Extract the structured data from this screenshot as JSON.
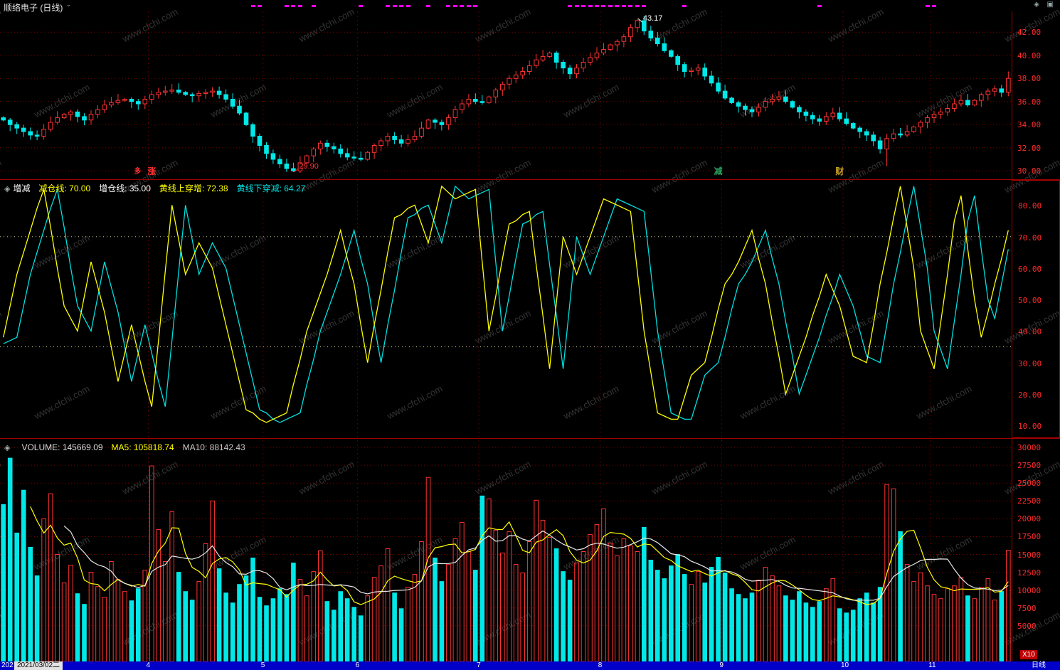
{
  "window": {
    "title": "顺络电子 (日线)",
    "caret": "ˇ",
    "icons": [
      {
        "name": "diamond-icon",
        "glyph": "◈"
      },
      {
        "name": "panes-icon",
        "glyph": "▣"
      }
    ]
  },
  "watermark": "www.cfchi.com",
  "colors": {
    "up": "#ff3232",
    "down": "#00e8e8",
    "grid": "#7a0000",
    "month_line": "#5a0000",
    "axis_text": "#ff2a2a",
    "ref_line": "#c8c890",
    "magenta": "#ff00ff",
    "bottom_bar": "#0000c8"
  },
  "panels": {
    "indicator": {
      "bullet": "◈",
      "name": "增减",
      "params": [
        {
          "text": "减仓线: 70.00",
          "color": "#ffff00"
        },
        {
          "text": "增仓线: 35.00",
          "color": "#ffffff"
        },
        {
          "text": "黄线上穿增: 72.38",
          "color": "#ffff00"
        },
        {
          "text": "黄线下穿减: 64.27",
          "color": "#00e0e0"
        }
      ]
    },
    "volume": {
      "bullet": "◈",
      "params": [
        {
          "text": "VOLUME: 145669.09",
          "color": "#dcdcdc"
        },
        {
          "text": "MA5: 105818.74",
          "color": "#ffff00"
        },
        {
          "text": "MA10: 88142.43",
          "color": "#c8c8c8"
        }
      ],
      "unit_label": "X10"
    }
  },
  "x_axis": {
    "clipped_text": "202",
    "date_label": "2021/03/02二",
    "period_label": "日线",
    "month_days": [
      22,
      39,
      53,
      71,
      89,
      107,
      125,
      138
    ],
    "month_labels": [
      "4",
      "5",
      "6",
      "7",
      "8",
      "9",
      "10",
      "11"
    ]
  },
  "chart_data": [
    {
      "type": "candlestick",
      "name": "顺络电子",
      "period": "日线",
      "ylim": [
        29.4,
        43.8
      ],
      "open_first": 34.6,
      "ticks": {
        "values": [
          42,
          40,
          38,
          36,
          34,
          32,
          30
        ],
        "labels": [
          "42.00",
          "40.00",
          "38.00",
          "36.00",
          "34.00",
          "32.00",
          "30.00"
        ]
      },
      "close": [
        34.4,
        34.0,
        33.7,
        33.4,
        33.1,
        33.0,
        33.6,
        34.2,
        34.6,
        34.9,
        35.1,
        34.7,
        34.4,
        34.9,
        35.3,
        35.7,
        35.9,
        36.1,
        36.2,
        36.0,
        35.8,
        36.2,
        36.6,
        36.8,
        36.9,
        37.0,
        36.8,
        36.6,
        36.5,
        36.7,
        36.8,
        36.9,
        36.6,
        36.2,
        35.6,
        35.0,
        34.0,
        33.0,
        32.2,
        31.5,
        31.0,
        30.6,
        30.2,
        30.0,
        30.7,
        31.3,
        31.9,
        32.4,
        32.1,
        31.9,
        31.5,
        31.2,
        31.1,
        31.0,
        31.6,
        32.2,
        32.6,
        33.0,
        32.7,
        32.4,
        32.7,
        33.0,
        33.7,
        34.4,
        34.2,
        34.0,
        34.6,
        35.3,
        35.8,
        36.2,
        36.0,
        35.9,
        36.4,
        37.0,
        37.5,
        38.0,
        38.3,
        38.6,
        39.1,
        39.6,
        39.9,
        40.2,
        39.4,
        38.9,
        38.4,
        38.9,
        39.4,
        39.8,
        40.2,
        40.5,
        40.9,
        41.2,
        41.6,
        42.4,
        43.0,
        42.1,
        41.5,
        41.0,
        40.4,
        39.9,
        39.2,
        38.6,
        38.7,
        38.9,
        38.2,
        37.6,
        36.9,
        36.3,
        35.9,
        35.6,
        35.3,
        35.1,
        35.5,
        36.0,
        36.2,
        36.4,
        36.0,
        35.5,
        35.1,
        34.8,
        34.5,
        34.3,
        34.7,
        35.0,
        34.5,
        34.1,
        33.7,
        33.4,
        33.1,
        32.6,
        31.9,
        32.8,
        33.2,
        33.1,
        33.4,
        33.8,
        34.2,
        34.6,
        34.9,
        35.1,
        35.4,
        35.8,
        36.1,
        35.7,
        36.1,
        36.6,
        36.9,
        37.1,
        36.8,
        38.0
      ],
      "wick_overrides": {
        "43": {
          "low": 29.9
        },
        "94": {
          "high": 43.17
        },
        "131": {
          "low": 30.4
        },
        "149": {
          "high": 38.6
        }
      },
      "annotations": [
        {
          "day": 94,
          "price": 43.17,
          "text": "43.17",
          "color": "#ffffff",
          "dir": "up"
        },
        {
          "day": 43,
          "price": 29.9,
          "text": "29.90",
          "color": "#ff3232",
          "dir": "down"
        }
      ],
      "markers": [
        {
          "day": 20,
          "text": "多",
          "color": "#ff3232",
          "size": 10
        },
        {
          "day": 22,
          "text": "涨",
          "color": "#ff3232",
          "size": 12
        },
        {
          "day": 106,
          "text": "减",
          "color": "#2aa45f",
          "size": 12
        },
        {
          "day": 124,
          "text": "财",
          "color": "#c9a227",
          "size": 12
        }
      ],
      "signal_days": [
        37,
        38,
        42,
        43,
        44,
        46,
        53,
        57,
        58,
        59,
        60,
        63,
        66,
        67,
        68,
        69,
        70,
        84,
        85,
        86,
        87,
        88,
        89,
        90,
        91,
        92,
        93,
        94,
        95,
        101,
        121,
        137,
        138
      ]
    },
    {
      "type": "line",
      "name": "增减",
      "ylim": [
        6,
        88
      ],
      "ticks": {
        "values": [
          80,
          70,
          60,
          50,
          40,
          30,
          20,
          10
        ],
        "labels": [
          "80.00",
          "70.00",
          "60.00",
          "50.00",
          "40.00",
          "30.00",
          "20.00",
          "10.00"
        ]
      },
      "reference_lines": [
        {
          "name": "减仓线",
          "value": 70
        },
        {
          "name": "增仓线",
          "value": 35
        }
      ],
      "crossover_values": {
        "黄线上穿增": 72.38,
        "黄线下穿减": 64.27
      },
      "series": [
        {
          "name": "青线",
          "color": "#00e0e0",
          "values": [
            36,
            37,
            38,
            48,
            58,
            65,
            72,
            79,
            85,
            73,
            60,
            48,
            44,
            40,
            51,
            62,
            54,
            46,
            35,
            24,
            33,
            42,
            33,
            24,
            16,
            37,
            59,
            80,
            69,
            58,
            63,
            68,
            64,
            60,
            51,
            42,
            33,
            24,
            15,
            14,
            12,
            11,
            12,
            13,
            14,
            23,
            31,
            40,
            46,
            52,
            58,
            65,
            72,
            63,
            55,
            42,
            30,
            42,
            53,
            65,
            76,
            77,
            79,
            80,
            74,
            68,
            77,
            86,
            84,
            82,
            83,
            84,
            85,
            62,
            40,
            51,
            63,
            74,
            75,
            77,
            78,
            61,
            45,
            28,
            49,
            70,
            64,
            58,
            64,
            70,
            76,
            82,
            81,
            80,
            79,
            78,
            59,
            40,
            27,
            14,
            13,
            12,
            12,
            19,
            26,
            28,
            30,
            38,
            47,
            55,
            58,
            62,
            67,
            72,
            63,
            55,
            43,
            32,
            20,
            26,
            32,
            38,
            45,
            51,
            58,
            53,
            48,
            40,
            32,
            31,
            30,
            42,
            55,
            65,
            76,
            86,
            73,
            60,
            40,
            34,
            28,
            43,
            58,
            75,
            83,
            66,
            50,
            44,
            55,
            66
          ]
        },
        {
          "name": "黄线",
          "color": "#ffff00",
          "values": [
            38,
            48,
            58,
            65,
            72,
            79,
            85,
            73,
            60,
            48,
            44,
            40,
            51,
            62,
            54,
            46,
            35,
            24,
            33,
            42,
            33,
            24,
            16,
            37,
            59,
            80,
            69,
            58,
            63,
            68,
            64,
            60,
            51,
            42,
            33,
            24,
            15,
            14,
            12,
            11,
            12,
            13,
            14,
            23,
            31,
            40,
            46,
            52,
            58,
            65,
            72,
            63,
            55,
            42,
            30,
            42,
            53,
            65,
            76,
            77,
            79,
            80,
            74,
            68,
            77,
            86,
            84,
            82,
            83,
            84,
            85,
            62,
            40,
            51,
            63,
            74,
            75,
            77,
            78,
            61,
            45,
            28,
            49,
            70,
            64,
            58,
            64,
            70,
            76,
            82,
            81,
            80,
            79,
            78,
            59,
            40,
            27,
            14,
            13,
            12,
            12,
            19,
            26,
            28,
            30,
            38,
            47,
            55,
            58,
            62,
            67,
            72,
            63,
            55,
            43,
            32,
            20,
            26,
            32,
            38,
            45,
            51,
            58,
            53,
            48,
            40,
            32,
            31,
            30,
            42,
            55,
            65,
            76,
            86,
            73,
            60,
            40,
            34,
            28,
            43,
            58,
            75,
            83,
            66,
            50,
            38,
            46,
            55,
            63,
            72
          ]
        }
      ]
    },
    {
      "type": "bar",
      "name": "VOLUME",
      "current": 145669.09,
      "ma5": 105818.74,
      "ma10": 88142.43,
      "unit": "X10",
      "ylim": [
        0,
        31000
      ],
      "ticks": {
        "values": [
          30000,
          27500,
          25000,
          22500,
          20000,
          17500,
          15000,
          12500,
          10000,
          7500,
          5000
        ],
        "labels": [
          "30000",
          "27500",
          "25000",
          "22500",
          "20000",
          "17500",
          "15000",
          "12500",
          "10000",
          "7500",
          "5000"
        ]
      },
      "values": [
        22000,
        28500,
        18000,
        24000,
        16000,
        12000,
        20000,
        23500,
        15000,
        11000,
        13500,
        9500,
        8000,
        12500,
        10500,
        9000,
        14000,
        11500,
        9800,
        8500,
        10200,
        12800,
        27400,
        18500,
        14000,
        21000,
        12500,
        9800,
        8600,
        11200,
        16500,
        22500,
        13000,
        9600,
        8200,
        10800,
        12000,
        14500,
        9000,
        7800,
        8800,
        10200,
        9400,
        13800,
        11500,
        9200,
        12600,
        15500,
        8400,
        7200,
        9800,
        8800,
        7600,
        6400,
        9200,
        11800,
        13400,
        15800,
        9600,
        7400,
        10400,
        12200,
        16800,
        25800,
        14500,
        11200,
        13600,
        17200,
        19500,
        15400,
        12800,
        23200,
        22800,
        18400,
        15200,
        18200,
        13600,
        12400,
        16800,
        22600,
        19800,
        17400,
        15800,
        12600,
        11400,
        13800,
        15400,
        17800,
        19200,
        21400,
        16600,
        14800,
        17200,
        16200,
        15400,
        18800,
        14200,
        12800,
        11600,
        13400,
        15000,
        12200,
        10800,
        12600,
        11000,
        13200,
        14600,
        12400,
        10200,
        9400,
        8800,
        9600,
        11400,
        13200,
        12000,
        10600,
        9200,
        8600,
        9800,
        8200,
        7600,
        8400,
        10200,
        11600,
        7400,
        6800,
        7200,
        8800,
        9600,
        8200,
        10400,
        24800,
        24200,
        18200,
        13600,
        11200,
        12400,
        10600,
        9400,
        8800,
        10200,
        10600,
        11800,
        9200,
        8800,
        10400,
        11600,
        8600,
        9800,
        15600
      ],
      "ma": [
        {
          "name": "MA5",
          "period": 5,
          "color": "#ffff00"
        },
        {
          "name": "MA10",
          "period": 10,
          "color": "#e8e8e8"
        }
      ]
    }
  ]
}
